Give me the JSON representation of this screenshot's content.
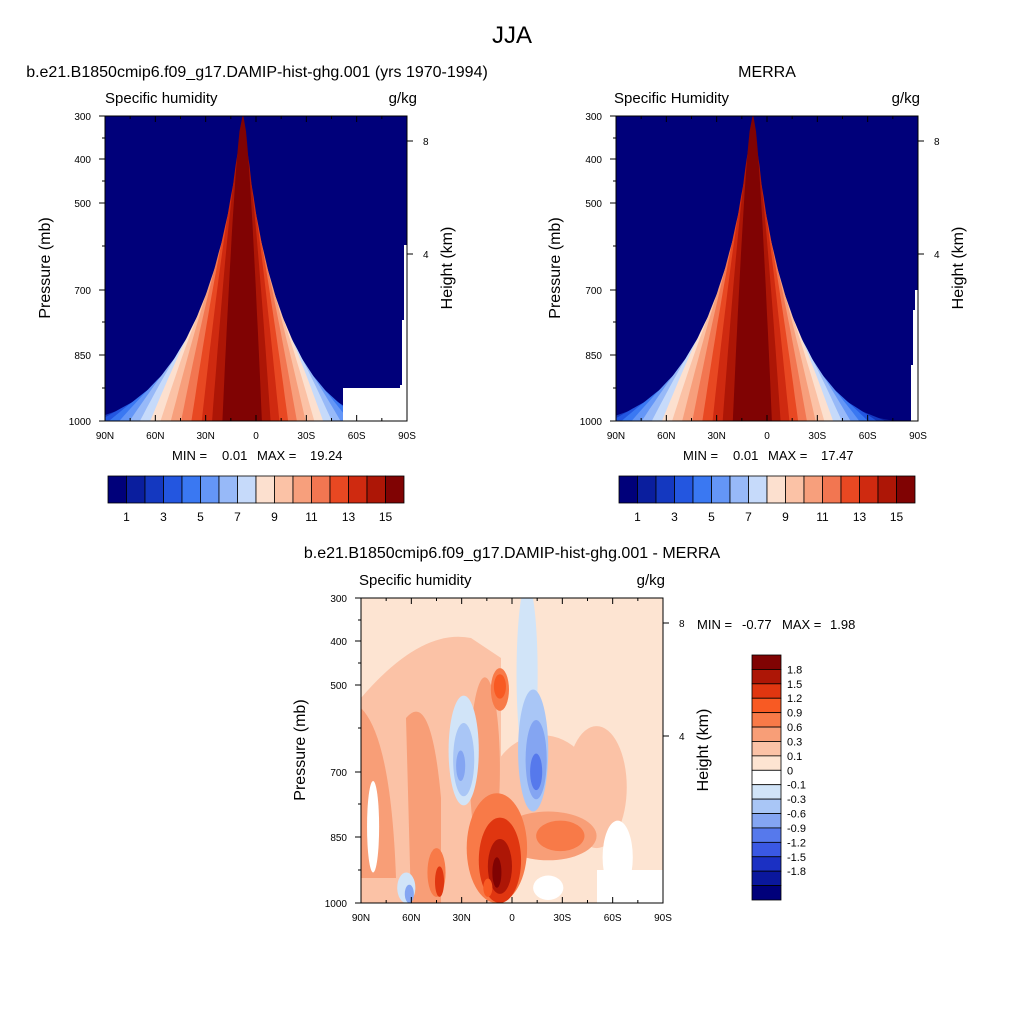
{
  "figure": {
    "title": "JJA"
  },
  "chart_data": [
    {
      "type": "heatmap",
      "title": "b.e21.B1850cmip6.f09_g17.DAMIP-hist-ghg.001 (yrs 1970-1994)",
      "left_label": "Specific humidity",
      "units": "g/kg",
      "ylabel": "Pressure (mb)",
      "ylabel_right": "Height (km)",
      "x_ticks": [
        "90N",
        "60N",
        "30N",
        "0",
        "30S",
        "60S",
        "90S"
      ],
      "y_ticks": [
        "300",
        "400",
        "500",
        "700",
        "850",
        "1000"
      ],
      "y_right_ticks": [
        "8",
        "4"
      ],
      "min_label": "MIN =",
      "min_value": "0.01",
      "max_label": "MAX =",
      "max_value": "19.24",
      "colorbar_labels": [
        "1",
        "3",
        "5",
        "7",
        "9",
        "11",
        "13",
        "15"
      ],
      "peak_g_per_kg": 19.24
    },
    {
      "type": "heatmap",
      "title": "MERRA",
      "left_label": "Specific Humidity",
      "units": "g/kg",
      "ylabel": "Pressure (mb)",
      "ylabel_right": "Height (km)",
      "x_ticks": [
        "90N",
        "60N",
        "30N",
        "0",
        "30S",
        "60S",
        "90S"
      ],
      "y_ticks": [
        "300",
        "400",
        "500",
        "700",
        "850",
        "1000"
      ],
      "y_right_ticks": [
        "8",
        "4"
      ],
      "min_label": "MIN =",
      "min_value": "0.01",
      "max_label": "MAX =",
      "max_value": "17.47",
      "colorbar_labels": [
        "1",
        "3",
        "5",
        "7",
        "9",
        "11",
        "13",
        "15"
      ],
      "peak_g_per_kg": 17.47
    },
    {
      "type": "heatmap",
      "title": "b.e21.B1850cmip6.f09_g17.DAMIP-hist-ghg.001 - MERRA",
      "left_label": "Specific humidity",
      "units": "g/kg",
      "ylabel": "Pressure (mb)",
      "ylabel_right": "Height (km)",
      "x_ticks": [
        "90N",
        "60N",
        "30N",
        "0",
        "30S",
        "60S",
        "90S"
      ],
      "y_ticks": [
        "300",
        "400",
        "500",
        "700",
        "850",
        "1000"
      ],
      "y_right_ticks": [
        "8",
        "4"
      ],
      "min_label": "MIN =",
      "min_value": "-0.77",
      "max_label": "MAX =",
      "max_value": "1.98",
      "colorbar_labels": [
        "1.8",
        "1.5",
        "1.2",
        "0.9",
        "0.6",
        "0.3",
        "0.1",
        "0",
        "-0.1",
        "-0.3",
        "-0.6",
        "-0.9",
        "-1.2",
        "-1.5",
        "-1.8"
      ]
    }
  ],
  "colors": {
    "abs_levels": [
      "#00007a",
      "#0a1e9e",
      "#1438c0",
      "#2356e0",
      "#3a78f2",
      "#6496f7",
      "#97b9f8",
      "#c6dafa",
      "#fce0cf",
      "#fbc2a6",
      "#f79f7c",
      "#f27651",
      "#e84822",
      "#cf2a10",
      "#ad1606",
      "#800303"
    ],
    "diff_levels": [
      "#800303",
      "#ad1606",
      "#e03610",
      "#f85a23",
      "#f87a48",
      "#f89e77",
      "#fbc2a6",
      "#fde4d2",
      "#ffffff",
      "#d1e4f8",
      "#a9c6f6",
      "#84a5f2",
      "#5679ec",
      "#3a58e3",
      "#1b30c3",
      "#0a179d",
      "#00007a"
    ]
  }
}
